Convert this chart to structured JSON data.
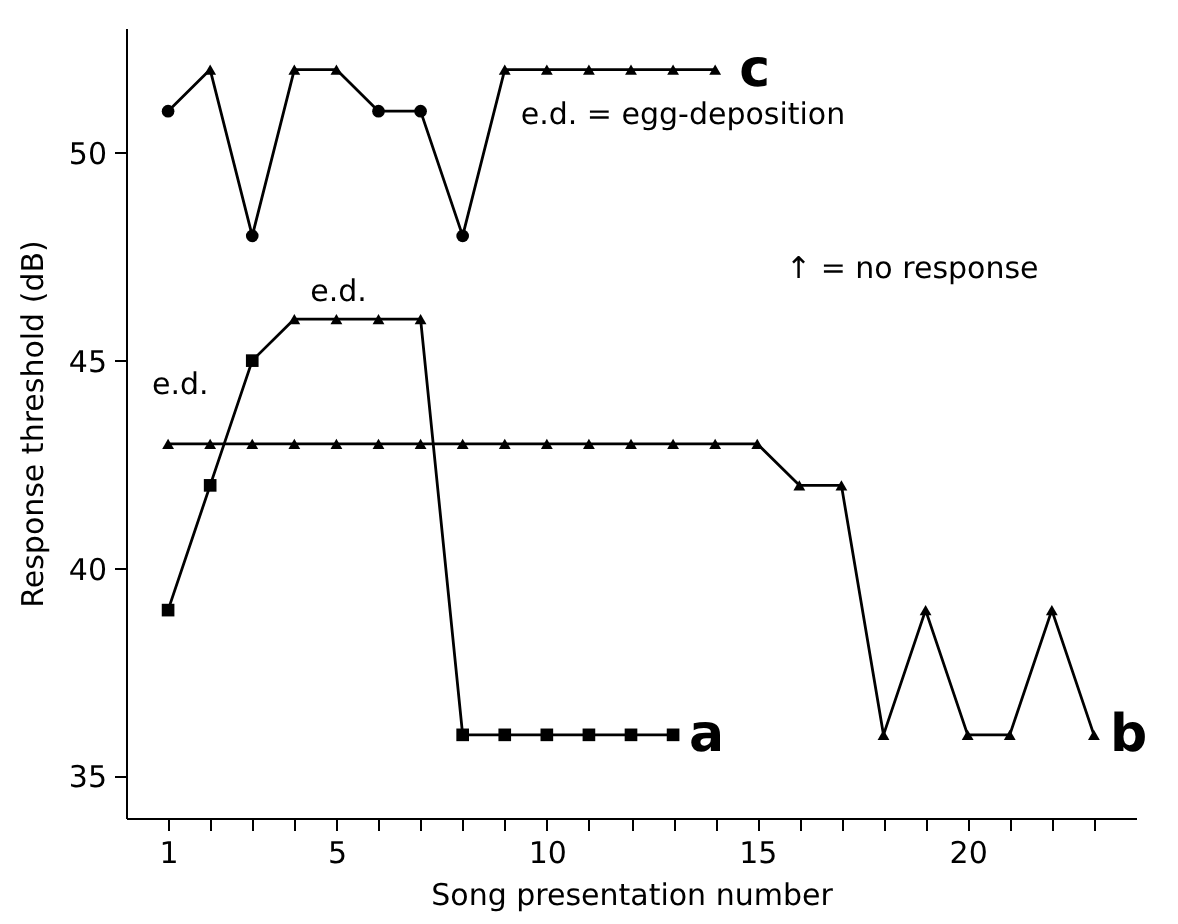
{
  "chart_data": {
    "type": "line",
    "xlabel": "Song presentation number",
    "ylabel": "Response threshold (dB)",
    "xlim": [
      0,
      24
    ],
    "ylim": [
      34,
      53
    ],
    "xticks": [
      1,
      {
        "value": 2,
        "label": null
      },
      {
        "value": 3,
        "label": null
      },
      {
        "value": 4,
        "label": null
      },
      5,
      {
        "value": 6,
        "label": null
      },
      {
        "value": 7,
        "label": null
      },
      {
        "value": 8,
        "label": null
      },
      {
        "value": 9,
        "label": null
      },
      10,
      {
        "value": 11,
        "label": null
      },
      {
        "value": 12,
        "label": null
      },
      {
        "value": 13,
        "label": null
      },
      {
        "value": 14,
        "label": null
      },
      15,
      {
        "value": 16,
        "label": null
      },
      {
        "value": 17,
        "label": null
      },
      {
        "value": 18,
        "label": null
      },
      {
        "value": 19,
        "label": null
      },
      20,
      {
        "value": 21,
        "label": null
      },
      {
        "value": 22,
        "label": null
      },
      {
        "value": 23,
        "label": null
      }
    ],
    "yticks": [
      35,
      40,
      45,
      50
    ],
    "grid": false,
    "line_style": "solid",
    "series": [
      {
        "type": "line",
        "color": "#000000",
        "marker": "none",
        "x": [
          1,
          2,
          3,
          4,
          5,
          6,
          7,
          8,
          9,
          10,
          11,
          12,
          13
        ],
        "values": [
          39,
          42,
          45,
          46,
          46,
          46,
          46,
          36,
          36,
          36,
          36,
          36,
          36
        ]
      },
      {
        "type": "line",
        "color": "#000000",
        "marker": "none",
        "x": [
          1,
          2,
          3,
          4,
          5,
          6,
          7,
          8,
          9,
          10,
          11,
          12,
          13,
          14,
          15,
          16,
          17,
          18,
          19,
          20,
          21,
          22,
          23
        ],
        "values": [
          43,
          43,
          43,
          43,
          43,
          43,
          43,
          43,
          43,
          43,
          43,
          43,
          43,
          43,
          43,
          42,
          42,
          36,
          39,
          36,
          36,
          39,
          36
        ]
      },
      {
        "type": "line",
        "color": "#000000",
        "marker": "none",
        "x": [
          1,
          2,
          3,
          4,
          5,
          6,
          7,
          8,
          9,
          10,
          11,
          12,
          13,
          14
        ],
        "values": [
          51,
          52,
          48,
          52,
          52,
          51,
          51,
          48,
          52,
          52,
          52,
          52,
          52,
          52
        ]
      },
      {
        "type": "scatter",
        "color": "#000000",
        "marker": "square",
        "x": [
          1,
          2,
          3,
          8,
          9,
          10,
          11,
          12,
          13
        ],
        "values": [
          39,
          42,
          45,
          36,
          36,
          36,
          36,
          36,
          36
        ]
      },
      {
        "type": "scatter",
        "color": "#000000",
        "marker": "triangle",
        "x": [
          16,
          17,
          18,
          19,
          20,
          21,
          22,
          23
        ],
        "values": [
          42,
          42,
          36,
          39,
          36,
          36,
          39,
          36
        ]
      },
      {
        "type": "scatter",
        "color": "#000000",
        "marker": "circle",
        "x": [
          1,
          3,
          6,
          7,
          8
        ],
        "values": [
          51,
          48,
          51,
          51,
          48
        ]
      },
      {
        "type": "scatter",
        "color": "#000000",
        "marker": "triangle",
        "x": [
          4,
          5,
          6,
          7,
          1,
          2,
          3,
          4,
          5,
          6,
          7,
          8,
          9,
          10,
          11,
          12,
          13,
          14,
          15,
          2,
          4,
          5,
          9,
          10,
          11,
          12,
          13,
          14
        ],
        "values": [
          46,
          46,
          46,
          46,
          43,
          43,
          43,
          43,
          43,
          43,
          43,
          43,
          43,
          43,
          43,
          43,
          43,
          43,
          43,
          52,
          52,
          52,
          52,
          52,
          52,
          52,
          52,
          52
        ]
      }
    ],
    "annotations": [
      {
        "text": "a",
        "x": 13,
        "y": 36
      },
      {
        "text": "b",
        "x": 23,
        "y": 36
      },
      {
        "text": "c",
        "x": 14,
        "y": 52
      },
      {
        "text": "e.d. = egg-deposition",
        "x": 9,
        "y": 52
      },
      "↑ = no response",
      {
        "text": "e.d.",
        "x": 1,
        "y": 43
      },
      {
        "text": "e.d.",
        "x": 4,
        "y": 46
      }
    ]
  }
}
